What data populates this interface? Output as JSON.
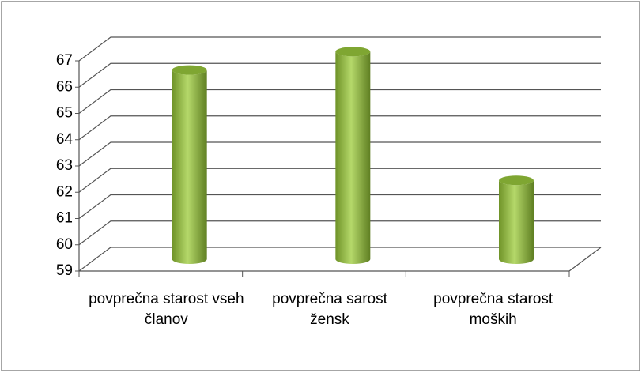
{
  "chart_data": {
    "type": "bar3d",
    "categories": [
      "povprečna starost vseh članov",
      "povprečna sarost žensk",
      "povprečna starost moških"
    ],
    "values": [
      66.2,
      66.9,
      62.0
    ],
    "color": "#8db43c",
    "ylim": [
      59,
      67
    ],
    "yticks": [
      59,
      60,
      61,
      62,
      63,
      64,
      65,
      66,
      67
    ],
    "grid": true
  }
}
